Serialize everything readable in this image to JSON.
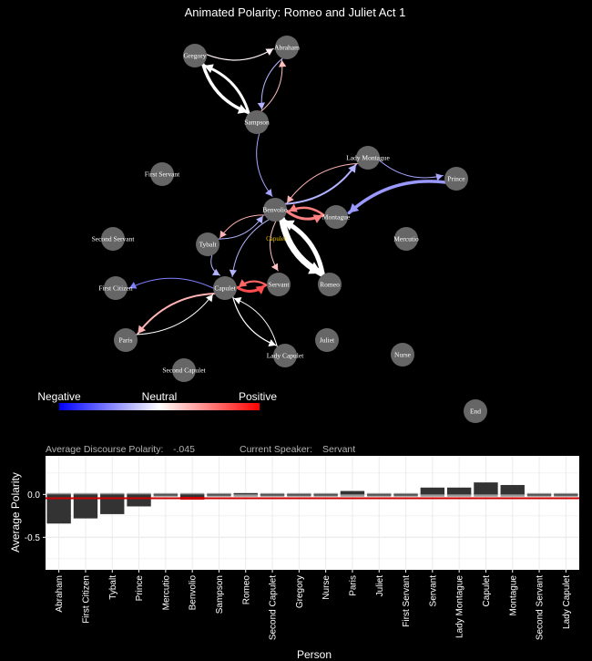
{
  "network": {
    "title": "Animated Polarity: Romeo and Juliet Act 1",
    "nodes": [
      "Gregory",
      "Abraham",
      "Sampson",
      "Lady Montague",
      "First Servant",
      "Prince",
      "Benvolio",
      "Montague",
      "Second Servant",
      "Tybalt",
      "Mercutio",
      "First Citizen",
      "Capulet",
      "Servant",
      "Romeo",
      "Paris",
      "Juliet",
      "Lady Capulet",
      "Nurse",
      "Second Capulet",
      "End"
    ],
    "edges": [
      {
        "from": "Gregory",
        "to": "Abraham",
        "polarity": 0.05,
        "weight": 1.2
      },
      {
        "from": "Gregory",
        "to": "Sampson",
        "polarity": 0.0,
        "weight": 3.5
      },
      {
        "from": "Sampson",
        "to": "Gregory",
        "polarity": 0.0,
        "weight": 3
      },
      {
        "from": "Abraham",
        "to": "Sampson",
        "polarity": -0.3,
        "weight": 1
      },
      {
        "from": "Sampson",
        "to": "Abraham",
        "polarity": 0.25,
        "weight": 1
      },
      {
        "from": "Sampson",
        "to": "Benvolio",
        "polarity": -0.35,
        "weight": 1
      },
      {
        "from": "Benvolio",
        "to": "Lady Montague",
        "polarity": -0.3,
        "weight": 2
      },
      {
        "from": "Lady Montague",
        "to": "Benvolio",
        "polarity": 0.3,
        "weight": 1
      },
      {
        "from": "Lady Montague",
        "to": "Prince",
        "polarity": -0.35,
        "weight": 1
      },
      {
        "from": "Prince",
        "to": "Montague",
        "polarity": -0.4,
        "weight": 3.5
      },
      {
        "from": "Montague",
        "to": "Benvolio",
        "polarity": 0.5,
        "weight": 2.5
      },
      {
        "from": "Benvolio",
        "to": "Montague",
        "polarity": 0.5,
        "weight": 3
      },
      {
        "from": "Benvolio",
        "to": "Romeo",
        "polarity": 0.0,
        "weight": 7
      },
      {
        "from": "Romeo",
        "to": "Benvolio",
        "polarity": 0.0,
        "weight": 5
      },
      {
        "from": "Benvolio",
        "to": "Servant",
        "polarity": 0.25,
        "weight": 1
      },
      {
        "from": "Tybalt",
        "to": "Benvolio",
        "polarity": -0.3,
        "weight": 1
      },
      {
        "from": "Benvolio",
        "to": "Tybalt",
        "polarity": 0.3,
        "weight": 1
      },
      {
        "from": "Benvolio",
        "to": "Capulet",
        "polarity": -0.3,
        "weight": 1
      },
      {
        "from": "Capulet",
        "to": "First Citizen",
        "polarity": -0.5,
        "weight": 1
      },
      {
        "from": "Tybalt",
        "to": "Capulet",
        "polarity": -0.3,
        "weight": 1
      },
      {
        "from": "Capulet",
        "to": "Servant",
        "polarity": 0.7,
        "weight": 3
      },
      {
        "from": "Servant",
        "to": "Capulet",
        "polarity": 0.6,
        "weight": 2
      },
      {
        "from": "Capulet",
        "to": "Paris",
        "polarity": 0.3,
        "weight": 2
      },
      {
        "from": "Paris",
        "to": "Capulet",
        "polarity": 0.0,
        "weight": 1
      },
      {
        "from": "Capulet",
        "to": "Lady Capulet",
        "polarity": 0.0,
        "weight": 1.2
      },
      {
        "from": "Lady Capulet",
        "to": "Capulet",
        "polarity": 0.0,
        "weight": 1
      }
    ],
    "legend": {
      "negative": "Negative",
      "neutral": "Neutral",
      "positive": "Positive",
      "colors": [
        "#0000ff",
        "#ffffff",
        "#ff0000"
      ]
    },
    "current_node_label": "Capulet",
    "node_color": "#666666"
  },
  "info": {
    "avg_label": "Average Discourse Polarity:",
    "avg_value": "-.045",
    "speaker_label": "Current Speaker:",
    "speaker_value": "Servant"
  },
  "chart_data": {
    "type": "bar",
    "xlabel": "Person",
    "ylabel": "Average Polarity",
    "yticks": [
      "0.0",
      "-0.5"
    ],
    "ylim": [
      -0.88,
      0.45
    ],
    "categories": [
      "Abraham",
      "First Citizen",
      "Tybalt",
      "Prince",
      "Mercutio",
      "Benvolio",
      "Sampson",
      "Romeo",
      "Second Capulet",
      "Gregory",
      "Nurse",
      "Paris",
      "Juliet",
      "First Servant",
      "Servant",
      "Lady Montague",
      "Capulet",
      "Montague",
      "Second Servant",
      "Lady Capulet"
    ],
    "values": [
      -0.34,
      -0.28,
      -0.23,
      -0.14,
      0.0,
      -0.06,
      -0.01,
      0.015,
      0.0,
      0.0,
      0.0,
      0.04,
      0.0,
      0.0,
      0.08,
      0.08,
      0.14,
      0.11,
      0.0,
      0.0
    ],
    "reference_values": [
      0.0,
      0.0,
      0.0,
      0.0,
      0.0,
      0.0,
      0.0,
      0.0,
      0.0,
      0.0,
      0.0,
      0.0,
      0.0,
      0.0,
      0.0,
      0.0,
      0.0,
      0.0,
      0.0,
      0.0
    ],
    "hline": -0.045,
    "colors": {
      "bar": "#333333",
      "reference": "#999999",
      "hline": "#cc0000",
      "highlight": "#cc0000"
    },
    "highlight": "Benvolio",
    "grid": true
  }
}
